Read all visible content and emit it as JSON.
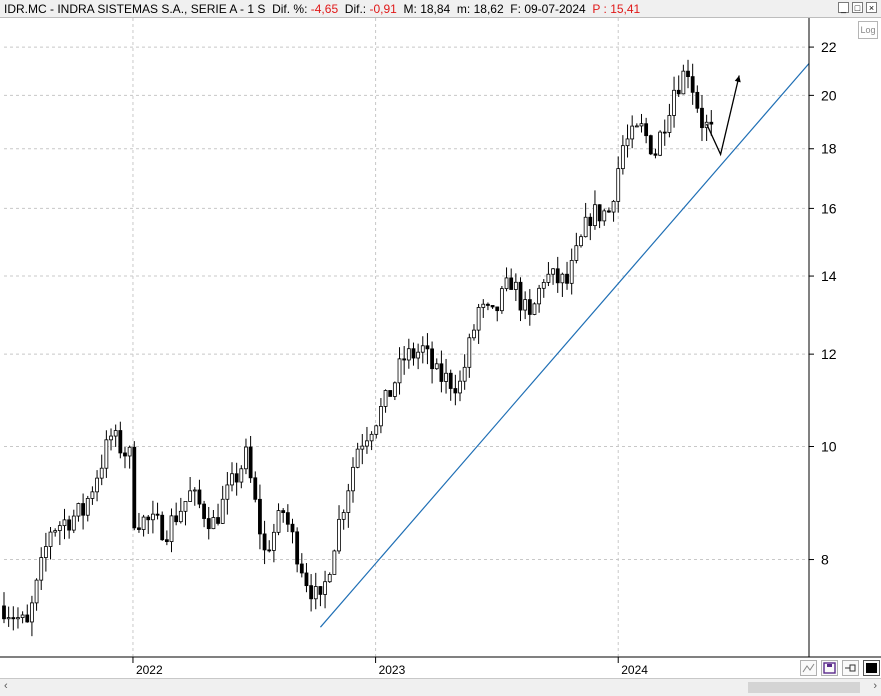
{
  "window": {
    "ticker_label": "IDR.MC - INDRA SISTEMAS S.A., SERIE A -  1 S",
    "dif_pct_label": "Dif. %:",
    "dif_pct_value": "-4,65",
    "dif_label": "Dif.:",
    "dif_value": "-0,91",
    "m_upper_label": "M:",
    "m_upper_value": "18,84",
    "m_lower_label": "m:",
    "m_lower_value": "18,62",
    "f_label": "F:",
    "f_value": "09-07-2024",
    "p_label": "P :",
    "p_value": "15,41",
    "minimize_glyph": "_",
    "maximize_glyph": "□",
    "close_glyph": "×",
    "log_button": "Log"
  },
  "colors": {
    "candle": "#000000",
    "trendline": "#1f6fb5",
    "arrow": "#000000",
    "negative": "#e01818",
    "grid": "#c8c8c8"
  },
  "icons": [
    "chart-style-icon",
    "save-icon",
    "pin-icon",
    "color-square-icon",
    "scroll-left-icon",
    "scroll-right-icon"
  ],
  "chart_data": {
    "type": "candlestick",
    "title": "IDR.MC - INDRA SISTEMAS S.A., SERIE A -  1 S",
    "y_scale": "log",
    "ylim": [
      6.6,
      23.3
    ],
    "y_ticks": [
      8,
      10,
      12,
      14,
      16,
      18,
      20,
      22
    ],
    "x_ticks": [
      {
        "date": "2022-01-01",
        "label": "2022"
      },
      {
        "date": "2023-01-01",
        "label": "2023"
      },
      {
        "date": "2024-01-01",
        "label": "2024"
      }
    ],
    "xlim": [
      "2021-06-21",
      "2024-10-14"
    ],
    "grid": true,
    "anchors": [
      {
        "date": "2021-06-21",
        "price": 7.3
      },
      {
        "date": "2021-07-26",
        "price": 7.0
      },
      {
        "date": "2021-08-30",
        "price": 8.5
      },
      {
        "date": "2021-10-18",
        "price": 8.8
      },
      {
        "date": "2021-11-29",
        "price": 10.2
      },
      {
        "date": "2021-12-27",
        "price": 9.8
      },
      {
        "date": "2022-01-03",
        "price": 8.7
      },
      {
        "date": "2022-02-21",
        "price": 8.5
      },
      {
        "date": "2022-03-28",
        "price": 9.1
      },
      {
        "date": "2022-05-02",
        "price": 8.6
      },
      {
        "date": "2022-06-20",
        "price": 9.8
      },
      {
        "date": "2022-07-18",
        "price": 8.1
      },
      {
        "date": "2022-08-15",
        "price": 8.8
      },
      {
        "date": "2022-09-19",
        "price": 7.7
      },
      {
        "date": "2022-10-10",
        "price": 7.3
      },
      {
        "date": "2022-10-31",
        "price": 8.3
      },
      {
        "date": "2022-12-05",
        "price": 10.0
      },
      {
        "date": "2023-01-16",
        "price": 10.9
      },
      {
        "date": "2023-02-13",
        "price": 11.9
      },
      {
        "date": "2023-03-13",
        "price": 12.1
      },
      {
        "date": "2023-04-03",
        "price": 11.5
      },
      {
        "date": "2023-05-08",
        "price": 11.3
      },
      {
        "date": "2023-06-05",
        "price": 13.1
      },
      {
        "date": "2023-06-26",
        "price": 12.9
      },
      {
        "date": "2023-07-24",
        "price": 13.9
      },
      {
        "date": "2023-08-21",
        "price": 12.8
      },
      {
        "date": "2023-09-11",
        "price": 14.0
      },
      {
        "date": "2023-10-16",
        "price": 13.8
      },
      {
        "date": "2023-11-20",
        "price": 15.8
      },
      {
        "date": "2023-12-18",
        "price": 15.9
      },
      {
        "date": "2024-01-08",
        "price": 18.1
      },
      {
        "date": "2024-02-05",
        "price": 18.7
      },
      {
        "date": "2024-02-26",
        "price": 17.9
      },
      {
        "date": "2024-03-25",
        "price": 20.3
      },
      {
        "date": "2024-04-15",
        "price": 21.1
      },
      {
        "date": "2024-05-06",
        "price": 19.0
      },
      {
        "date": "2024-05-20",
        "price": 18.6
      }
    ],
    "trendline": {
      "start": {
        "date": "2022-10-10",
        "price": 7.0
      },
      "end": {
        "date": "2024-10-14",
        "price": 21.3
      }
    },
    "arrow_path": [
      {
        "date": "2024-05-13",
        "price": 18.9
      },
      {
        "date": "2024-06-03",
        "price": 17.8
      },
      {
        "date": "2024-07-01",
        "price": 20.8
      }
    ]
  }
}
